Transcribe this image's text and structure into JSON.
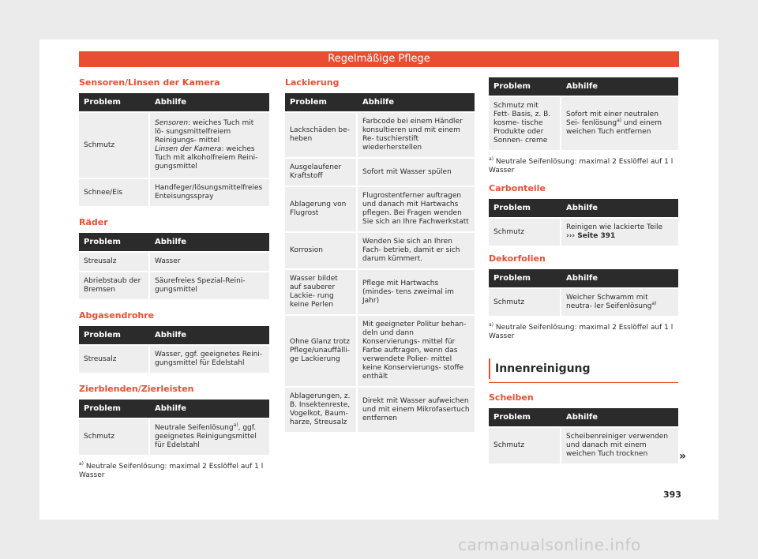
{
  "header": {
    "title": "Regelmäßige Pflege"
  },
  "columns_header": {
    "problem": "Problem",
    "remedy": "Abhilfe"
  },
  "col1": {
    "kamera": {
      "title": "Sensoren/Linsen der Kamera",
      "rows": [
        {
          "problem": "Schmutz",
          "remedy_sensoren_label": "Sensoren",
          "remedy_sensoren_text": ": weiches Tuch mit lö- sungsmittelfreiem Reinigungs- mittel",
          "remedy_linsen_label": "Linsen der Kamera",
          "remedy_linsen_text": ": weiches Tuch mit alkoholfreiem Reini- gungsmittel"
        },
        {
          "problem": "Schnee/Eis",
          "remedy": "Handfeger/lösungsmittelfreies Enteisungsspray"
        }
      ]
    },
    "raeder": {
      "title": "Räder",
      "rows": [
        {
          "problem": "Streusalz",
          "remedy": "Wasser"
        },
        {
          "problem": "Abriebstaub der Bremsen",
          "remedy": "Säurefreies Spezial-Reini- gungsmittel"
        }
      ]
    },
    "abgas": {
      "title": "Abgasendrohre",
      "rows": [
        {
          "problem": "Streusalz",
          "remedy": "Wasser, ggf. geeignetes Reini- gungsmittel für Edelstahl"
        }
      ]
    },
    "zier": {
      "title": "Zierblenden/Zierleisten",
      "rows": [
        {
          "problem": "Schmutz",
          "remedy_a": "Neutrale Seifenlösung",
          "remedy_sup": "a)",
          "remedy_b": ", ggf. geeignetes Reinigungsmittel für Edelstahl"
        }
      ]
    },
    "note": {
      "mark": "a)",
      "text": "Neutrale Seifenlösung: maximal 2 Esslöffel auf 1 l Wasser"
    }
  },
  "col2": {
    "lack": {
      "title": "Lackierung",
      "rows": [
        {
          "problem": "Lackschäden be- heben",
          "remedy": "Farbcode bei einem Händler konsultieren und mit einem Re- tuschierstift wiederherstellen"
        },
        {
          "problem": "Ausgelaufener Kraftstoff",
          "remedy": "Sofort mit Wasser spülen"
        },
        {
          "problem": "Ablagerung von Flugrost",
          "remedy": "Flugrostentferner auftragen und danach mit Hartwachs pflegen. Bei Fragen wenden Sie sich an Ihre Fachwerkstatt"
        },
        {
          "problem": "Korrosion",
          "remedy": "Wenden Sie sich an Ihren Fach- betrieb, damit er sich darum kümmert."
        },
        {
          "problem": "Wasser bildet auf sauberer Lackie- rung keine Perlen",
          "remedy": "Pflege mit Hartwachs (mindes- tens zweimal im Jahr)"
        },
        {
          "problem": "Ohne Glanz trotz Pflege/unauffälli- ge Lackierung",
          "remedy": "Mit geeigneter Politur behan- deln und dann Konservierungs- mittel für Farbe auftragen, wenn das verwendete Polier- mittel keine Konservierungs- stoffe enthält"
        },
        {
          "problem": "Ablagerungen, z. B. Insektenreste, Vogelkot, Baum- harze, Streusalz",
          "remedy": "Direkt mit Wasser aufweichen und mit einem Mikrofasertuch entfernen"
        }
      ]
    }
  },
  "col3": {
    "top": {
      "rows": [
        {
          "problem": "Schmutz mit Fett- Basis, z. B. kosme- tische Produkte oder Sonnen- creme",
          "remedy_a": "Sofort mit einer neutralen Sei- fenlösung",
          "remedy_sup": "a)",
          "remedy_b": " und einem weichen Tuch entfernen"
        }
      ]
    },
    "note1": {
      "mark": "a)",
      "text": "Neutrale Seifenlösung: maximal 2 Esslöffel auf 1 l Wasser"
    },
    "carbon": {
      "title": "Carbonteile",
      "rows": [
        {
          "problem": "Schmutz",
          "remedy": "Reinigen wie lackierte Teile",
          "link": "››› Seite 391"
        }
      ]
    },
    "dekor": {
      "title": "Dekorfolien",
      "rows": [
        {
          "problem": "Schmutz",
          "remedy_a": "Weicher Schwamm mit neutra- ler Seifenlösung",
          "remedy_sup": "a)"
        }
      ]
    },
    "note2": {
      "mark": "a)",
      "text": "Neutrale Seifenlösung: maximal 2 Esslöffel auf 1 l Wasser"
    },
    "innen": {
      "title": "Innenreinigung"
    },
    "scheiben": {
      "title": "Scheiben",
      "rows": [
        {
          "problem": "Schmutz",
          "remedy": "Scheibenreiniger verwenden und danach mit einem weichen Tuch trocknen"
        }
      ]
    }
  },
  "footer": {
    "page_number": "393",
    "next_marker": "»"
  },
  "watermark": "carmanualsonline.info"
}
